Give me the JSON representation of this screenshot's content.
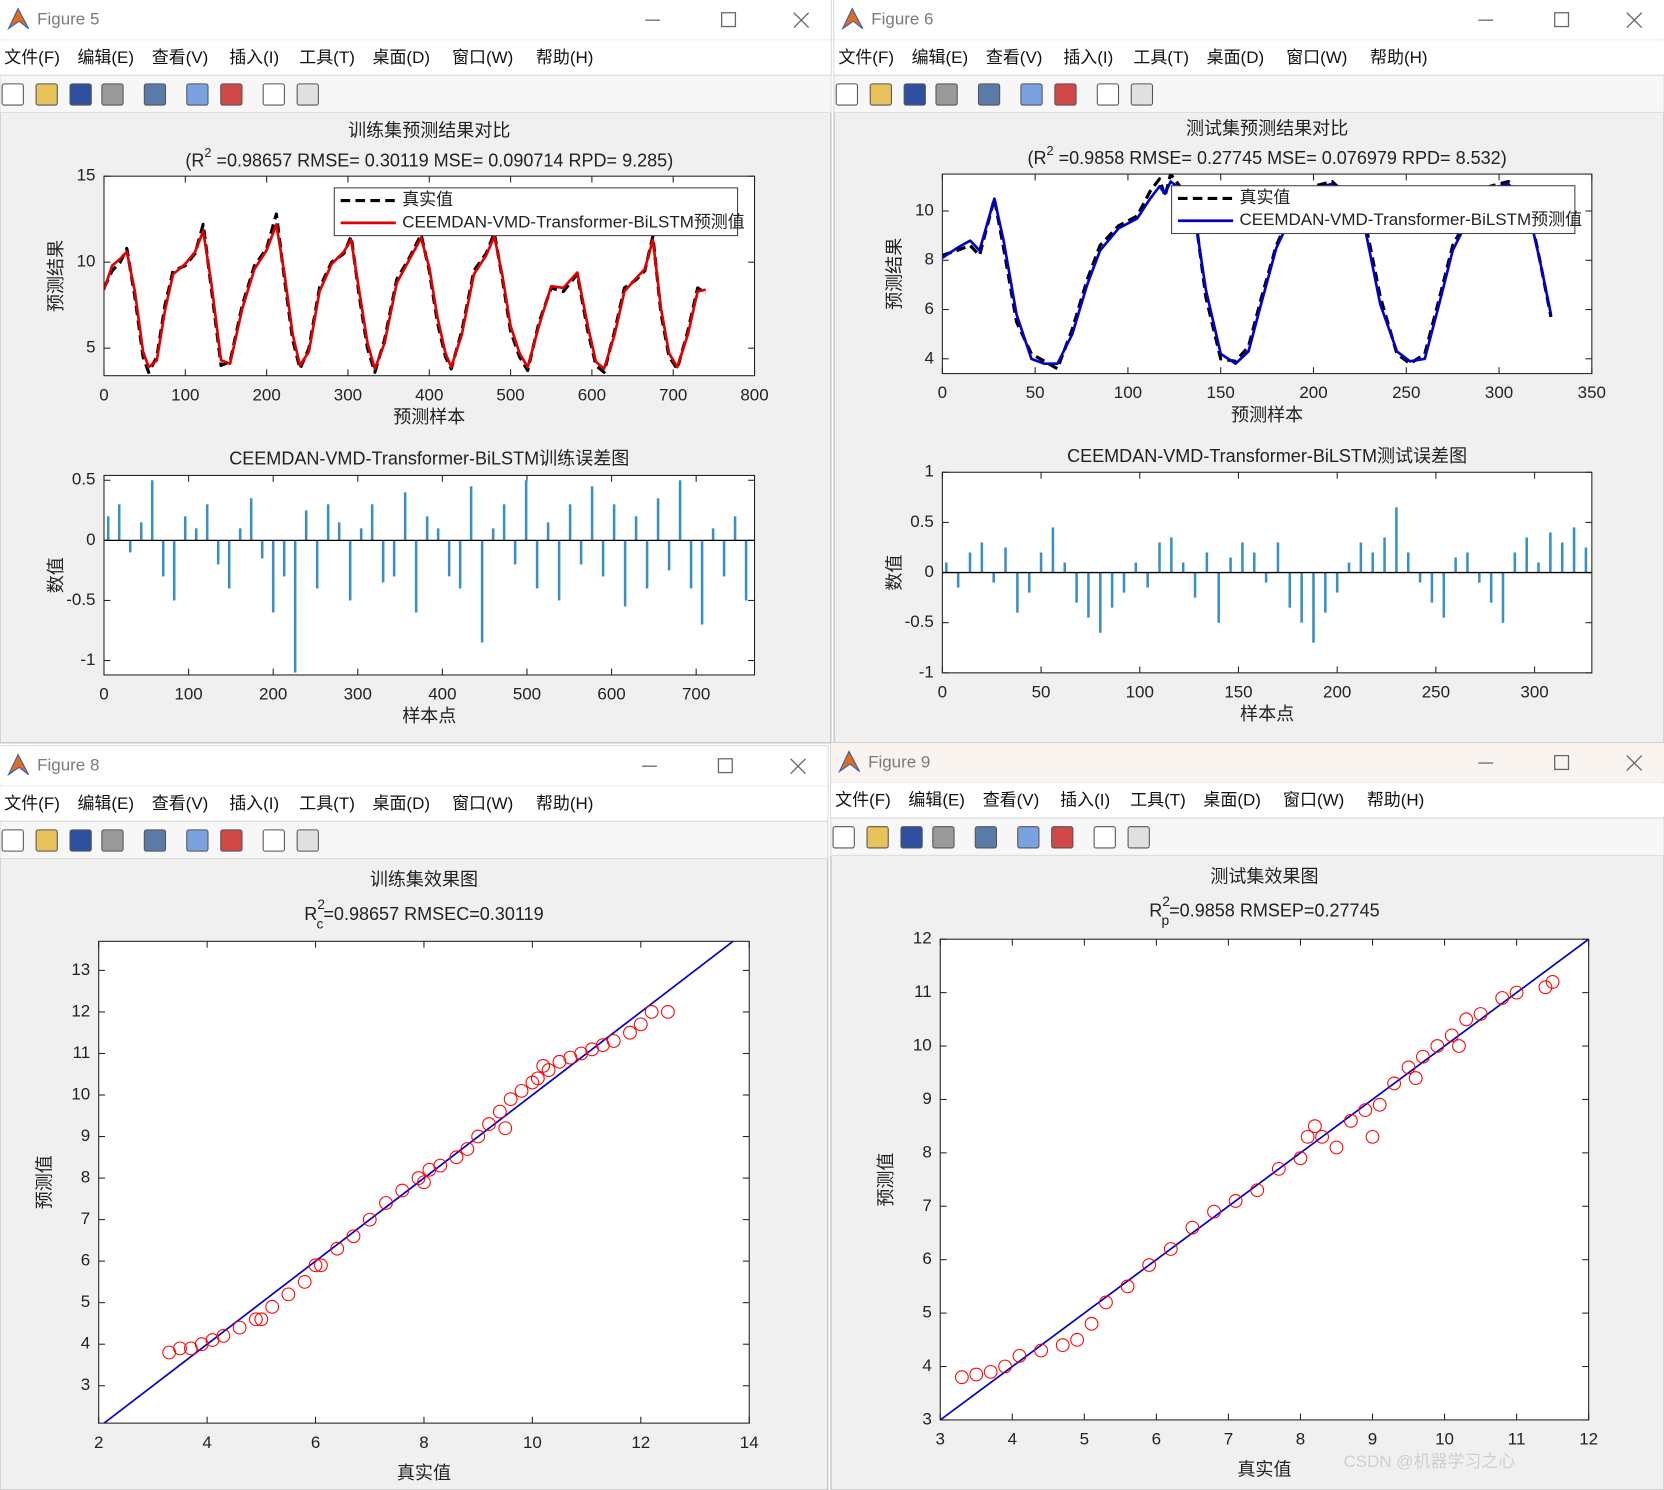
{
  "windows": [
    {
      "title": "Figure 5",
      "menu": [
        "文件(F)",
        "编辑(E)",
        "查看(V)",
        "插入(I)",
        "工具(T)",
        "桌面(D)",
        "窗口(W)",
        "帮助(H)"
      ]
    },
    {
      "title": "Figure 6",
      "menu": [
        "文件(F)",
        "编辑(E)",
        "查看(V)",
        "插入(I)",
        "工具(T)",
        "桌面(D)",
        "窗口(W)",
        "帮助(H)"
      ]
    },
    {
      "title": "Figure 8",
      "menu": [
        "文件(F)",
        "编辑(E)",
        "查看(V)",
        "插入(I)",
        "工具(T)",
        "桌面(D)",
        "窗口(W)",
        "帮助(H)"
      ]
    },
    {
      "title": "Figure 9",
      "menu": [
        "文件(F)",
        "编辑(E)",
        "查看(V)",
        "插入(I)",
        "工具(T)",
        "桌面(D)",
        "窗口(W)",
        "帮助(H)"
      ]
    }
  ],
  "chart_data": [
    {
      "type": "line",
      "title": "训练集预测结果对比",
      "subtitle": [
        "(R",
        "2",
        " =0.98657 RMSE= 0.30119 MSE= 0.090714 RPD= 9.285)"
      ],
      "x_label": "预测样本",
      "y_label": "预测结果",
      "x": [
        0,
        10,
        20,
        28,
        38,
        48,
        55,
        65,
        75,
        85,
        100,
        112,
        122,
        132,
        144,
        155,
        170,
        185,
        200,
        212,
        222,
        232,
        241,
        252,
        265,
        280,
        295,
        304,
        314,
        324,
        333,
        345,
        360,
        375,
        390,
        400,
        410,
        420,
        427,
        440,
        455,
        470,
        480,
        490,
        500,
        511,
        521,
        535,
        550,
        565,
        582,
        595,
        605,
        615,
        628,
        640,
        655,
        665,
        675,
        685,
        695,
        705,
        718,
        730,
        740
      ],
      "series": [
        {
          "name": "真实值",
          "color": "#000000",
          "dash": true,
          "values": [
            8.5,
            9.5,
            10.0,
            10.8,
            8.0,
            4.5,
            3.6,
            4.5,
            7.5,
            9.5,
            9.8,
            10.5,
            12.2,
            8.5,
            4.0,
            4.2,
            7.5,
            9.8,
            10.8,
            12.8,
            9.0,
            5.5,
            3.8,
            5.0,
            8.5,
            10.0,
            10.5,
            11.5,
            8.0,
            5.0,
            3.6,
            5.5,
            9.0,
            10.2,
            11.6,
            9.5,
            6.5,
            4.5,
            3.8,
            6.0,
            9.5,
            10.5,
            11.7,
            9.0,
            6.0,
            4.5,
            3.7,
            6.5,
            8.5,
            8.3,
            9.3,
            6.0,
            4.0,
            3.6,
            6.0,
            8.5,
            9.0,
            9.5,
            11.5,
            7.0,
            4.5,
            3.8,
            6.0,
            8.5,
            8.2
          ]
        },
        {
          "name": "CEEMDAN-VMD-Transformer-BiLSTM预测值",
          "color": "#e00000",
          "dash": false,
          "values": [
            8.4,
            9.8,
            10.2,
            10.6,
            8.3,
            4.8,
            3.9,
            4.3,
            7.2,
            9.3,
            9.9,
            10.6,
            11.8,
            8.8,
            4.3,
            4.1,
            7.3,
            9.6,
            10.7,
            12.2,
            9.3,
            5.8,
            4.0,
            4.8,
            8.3,
            9.9,
            10.6,
            11.3,
            8.3,
            5.3,
            3.8,
            5.3,
            8.8,
            10.1,
            11.4,
            9.7,
            6.8,
            4.7,
            3.9,
            5.8,
            9.3,
            10.4,
            11.5,
            9.2,
            6.3,
            4.7,
            3.9,
            6.3,
            8.6,
            8.5,
            9.4,
            6.3,
            4.2,
            3.8,
            5.8,
            8.3,
            9.1,
            9.6,
            11.3,
            7.3,
            4.7,
            3.9,
            5.8,
            8.3,
            8.4
          ]
        }
      ],
      "xlim": [
        0,
        800
      ],
      "xticks": [
        0,
        100,
        200,
        300,
        400,
        500,
        600,
        700,
        800
      ],
      "ylim": [
        3.4,
        15
      ],
      "yticks": [
        5,
        10,
        15
      ],
      "legend": "upper right"
    },
    {
      "type": "bar",
      "title": "CEEMDAN-VMD-Transformer-BiLSTM训练误差图",
      "x_label": "样本点",
      "y_label": "数值",
      "color": "#3a8fc7",
      "x": [
        5,
        18,
        31,
        44,
        57,
        70,
        83,
        96,
        109,
        122,
        135,
        148,
        161,
        174,
        187,
        200,
        213,
        226,
        239,
        252,
        265,
        278,
        291,
        304,
        317,
        330,
        343,
        356,
        369,
        382,
        395,
        408,
        421,
        434,
        447,
        460,
        473,
        486,
        499,
        512,
        525,
        538,
        551,
        564,
        577,
        590,
        603,
        616,
        629,
        642,
        655,
        668,
        681,
        694,
        707,
        720,
        733,
        746,
        759
      ],
      "values": [
        0.2,
        0.3,
        -0.1,
        0.15,
        0.5,
        -0.3,
        -0.5,
        0.2,
        0.1,
        0.3,
        -0.2,
        -0.4,
        0.1,
        0.35,
        -0.15,
        -0.6,
        -0.3,
        -1.1,
        0.25,
        -0.4,
        0.3,
        0.15,
        -0.5,
        0.1,
        0.3,
        -0.35,
        -0.3,
        0.4,
        -0.6,
        0.2,
        0.1,
        -0.3,
        -0.4,
        0.45,
        -0.85,
        0.1,
        0.3,
        -0.2,
        0.5,
        -0.4,
        0.15,
        -0.5,
        0.3,
        -0.2,
        0.45,
        -0.3,
        0.3,
        -0.55,
        0.2,
        -0.4,
        0.35,
        -0.25,
        0.5,
        -0.4,
        -0.7,
        0.1,
        -0.3,
        0.2,
        -0.5
      ],
      "xlim": [
        0,
        769
      ],
      "xticks": [
        0,
        100,
        200,
        300,
        400,
        500,
        600,
        700
      ],
      "ylim": [
        -1.12,
        0.54
      ],
      "yticks": [
        -1,
        -0.5,
        0,
        0.5
      ]
    },
    {
      "type": "line",
      "title": "测试集预测结果对比",
      "subtitle": [
        "(R",
        "2",
        " =0.9858 RMSE= 0.27745 MSE= 0.076979 RPD= 8.532)"
      ],
      "x_label": "预测样本",
      "y_label": "预测结果",
      "x": [
        0,
        8,
        15,
        20,
        28,
        33,
        40,
        48,
        55,
        62,
        70,
        78,
        85,
        95,
        105,
        112,
        117,
        120,
        123,
        128,
        135,
        142,
        150,
        158,
        165,
        172,
        180,
        190,
        200,
        210,
        220,
        228,
        236,
        245,
        252,
        260,
        268,
        275,
        285,
        295,
        305,
        315,
        322,
        328
      ],
      "series": [
        {
          "name": "真实值",
          "color": "#000000",
          "dash": true,
          "values": [
            8.2,
            8.4,
            8.6,
            8.2,
            10.5,
            8.5,
            5.5,
            4.2,
            3.9,
            3.6,
            5.2,
            7.2,
            8.6,
            9.4,
            9.8,
            10.8,
            11.3,
            10.6,
            11.5,
            11,
            10.5,
            6.5,
            4.0,
            3.9,
            4.5,
            6.5,
            8.6,
            10.3,
            11,
            11.2,
            10.5,
            9.5,
            6.5,
            4.2,
            3.8,
            4.2,
            6.5,
            8.6,
            10,
            11,
            11.2,
            10.5,
            8,
            5.7
          ]
        },
        {
          "name": "CEEMDAN-VMD-Transformer-BiLSTM预测值",
          "color": "#0000cc",
          "dash": false,
          "values": [
            8.1,
            8.5,
            8.8,
            8.4,
            10.5,
            8.8,
            5.8,
            4.0,
            3.8,
            3.8,
            5.0,
            7.0,
            8.4,
            9.3,
            9.7,
            10.5,
            11.0,
            10.7,
            11.2,
            10.9,
            10.3,
            6.8,
            4.2,
            3.8,
            4.3,
            6.3,
            8.5,
            10.1,
            10.9,
            11.1,
            10.3,
            9.2,
            6.2,
            4.3,
            3.9,
            4.0,
            6.3,
            8.4,
            9.9,
            10.9,
            11.1,
            10.3,
            8.0,
            5.8
          ]
        }
      ],
      "xlim": [
        0,
        350
      ],
      "xticks": [
        0,
        50,
        100,
        150,
        200,
        250,
        300,
        350
      ],
      "ylim": [
        3.4,
        11.5
      ],
      "yticks": [
        4,
        6,
        8,
        10
      ],
      "legend": "upper right"
    },
    {
      "type": "bar",
      "title": "CEEMDAN-VMD-Transformer-BiLSTM测试误差图",
      "x_label": "样本点",
      "y_label": "数值",
      "color": "#3a8fc7",
      "x": [
        2,
        8,
        14,
        20,
        26,
        32,
        38,
        44,
        50,
        56,
        62,
        68,
        74,
        80,
        86,
        92,
        98,
        104,
        110,
        116,
        122,
        128,
        134,
        140,
        146,
        152,
        158,
        164,
        170,
        176,
        182,
        188,
        194,
        200,
        206,
        212,
        218,
        224,
        230,
        236,
        242,
        248,
        254,
        260,
        266,
        272,
        278,
        284,
        290,
        296,
        302,
        308,
        314,
        320,
        326
      ],
      "values": [
        0.1,
        -0.15,
        0.2,
        0.3,
        -0.1,
        0.25,
        -0.4,
        -0.2,
        0.2,
        0.45,
        0.1,
        -0.3,
        -0.45,
        -0.6,
        -0.35,
        -0.2,
        0.1,
        -0.15,
        0.3,
        0.35,
        0.1,
        -0.25,
        0.2,
        -0.5,
        0.15,
        0.3,
        0.2,
        -0.1,
        0.3,
        -0.35,
        -0.5,
        -0.7,
        -0.4,
        -0.2,
        0.1,
        0.3,
        0.2,
        0.35,
        0.65,
        0.2,
        -0.1,
        -0.3,
        -0.45,
        0.15,
        0.2,
        -0.1,
        -0.3,
        -0.5,
        0.2,
        0.35,
        0.1,
        0.4,
        0.3,
        0.45,
        0.25
      ],
      "xlim": [
        0,
        329
      ],
      "xticks": [
        0,
        50,
        100,
        150,
        200,
        250,
        300
      ],
      "ylim": [
        -1,
        1
      ],
      "yticks": [
        -1,
        -0.5,
        0,
        0.5,
        1
      ]
    },
    {
      "type": "scatter",
      "title": "训练集效果图",
      "subtitle": [
        "R",
        "2",
        "c",
        "=0.98657  RMSEC=0.30119"
      ],
      "x_label": "真实值",
      "y_label": "预测值",
      "color": "#ff0000",
      "x": [
        3.3,
        3.5,
        3.7,
        3.9,
        4.1,
        4.3,
        4.6,
        4.9,
        5.2,
        5.5,
        5.8,
        6.1,
        6.4,
        6.7,
        7.0,
        7.3,
        7.6,
        7.9,
        8.1,
        8.3,
        8.6,
        8.8,
        9.0,
        9.2,
        9.4,
        9.6,
        9.8,
        10.0,
        10.1,
        10.3,
        10.5,
        10.7,
        10.9,
        11.1,
        11.3,
        11.5,
        11.8,
        12.0,
        12.2,
        12.5,
        5.0,
        6.0,
        8.0,
        9.5,
        10.2
      ],
      "values": [
        3.8,
        3.9,
        3.9,
        4.0,
        4.1,
        4.2,
        4.4,
        4.6,
        4.9,
        5.2,
        5.5,
        5.9,
        6.3,
        6.6,
        7.0,
        7.4,
        7.7,
        8.0,
        8.2,
        8.3,
        8.5,
        8.7,
        9.0,
        9.3,
        9.6,
        9.9,
        10.1,
        10.3,
        10.4,
        10.6,
        10.8,
        10.9,
        11.0,
        11.1,
        11.2,
        11.3,
        11.5,
        11.7,
        12.0,
        12.0,
        4.6,
        5.9,
        7.9,
        9.2,
        10.7
      ],
      "ref_line": {
        "x": [
          2,
          14
        ],
        "values": [
          2,
          14
        ],
        "color": "#0000cc"
      },
      "xlim": [
        2,
        14
      ],
      "xticks": [
        2,
        4,
        6,
        8,
        10,
        12,
        14
      ],
      "ylim": [
        2.1,
        13.7
      ],
      "yticks": [
        3,
        4,
        5,
        6,
        7,
        8,
        9,
        10,
        11,
        12,
        13
      ]
    },
    {
      "type": "scatter",
      "title": "测试集效果图",
      "subtitle": [
        "R",
        "2",
        "p",
        "=0.9858  RMSEP=0.27745"
      ],
      "x_label": "真实值",
      "y_label": "预测值",
      "color": "#ff0000",
      "x": [
        3.3,
        3.5,
        3.7,
        3.9,
        4.1,
        4.4,
        4.7,
        4.9,
        5.1,
        5.3,
        5.6,
        5.9,
        6.2,
        6.5,
        6.8,
        7.1,
        7.4,
        7.7,
        8.0,
        8.1,
        8.3,
        8.5,
        8.7,
        8.9,
        9.1,
        9.3,
        9.5,
        9.7,
        9.9,
        10.1,
        10.3,
        10.5,
        10.8,
        11.0,
        11.4,
        11.5,
        8.2,
        9.0,
        9.6,
        10.2
      ],
      "values": [
        3.8,
        3.85,
        3.9,
        4.0,
        4.2,
        4.3,
        4.4,
        4.5,
        4.8,
        5.2,
        5.5,
        5.9,
        6.2,
        6.6,
        6.9,
        7.1,
        7.3,
        7.7,
        7.9,
        8.3,
        8.3,
        8.1,
        8.6,
        8.8,
        8.9,
        9.3,
        9.6,
        9.8,
        10.0,
        10.2,
        10.5,
        10.6,
        10.9,
        11.0,
        11.1,
        11.2,
        8.5,
        8.3,
        9.4,
        10.0
      ],
      "ref_line": {
        "x": [
          3,
          12
        ],
        "values": [
          3,
          12
        ],
        "color": "#0000cc"
      },
      "xlim": [
        3,
        12
      ],
      "xticks": [
        3,
        4,
        5,
        6,
        7,
        8,
        9,
        10,
        11,
        12
      ],
      "ylim": [
        3,
        12
      ],
      "yticks": [
        3,
        4,
        5,
        6,
        7,
        8,
        9,
        10,
        11,
        12
      ]
    }
  ],
  "watermark": "CSDN @机器学习之心"
}
